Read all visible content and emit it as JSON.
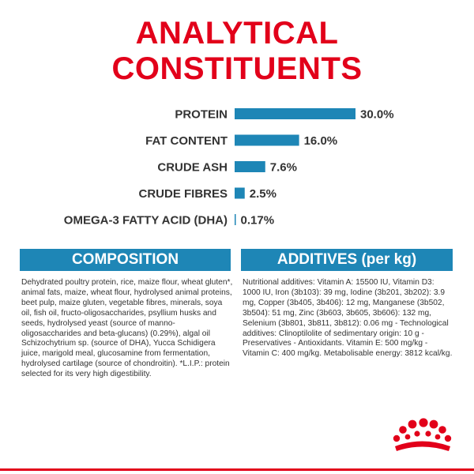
{
  "title": {
    "line1": "ANALYTICAL",
    "line2": "CONSTITUENTS"
  },
  "chart_data": {
    "type": "bar",
    "orientation": "horizontal",
    "categories": [
      "PROTEIN",
      "FAT CONTENT",
      "CRUDE ASH",
      "CRUDE FIBRES",
      "OMEGA-3 FATTY ACID (DHA)"
    ],
    "values": [
      30.0,
      16.0,
      7.6,
      2.5,
      0.17
    ],
    "value_labels": [
      "30.0%",
      "16.0%",
      "7.6%",
      "2.5%",
      "0.17%"
    ],
    "unit": "%",
    "bar_color": "#1e86b6",
    "grid": false,
    "legend": false
  },
  "composition": {
    "heading": "COMPOSITION",
    "text": "Dehydrated poultry protein, rice, maize flour, wheat gluten*, animal fats, maize, wheat flour, hydrolysed animal proteins, beet pulp, maize gluten, vegetable fibres, minerals, soya oil, fish oil, fructo-oligosaccharides, psyllium husks and seeds, hydrolysed yeast (source of manno-oligosaccharides and beta-glucans) (0.29%), algal oil Schizochytrium sp. (source of DHA), Yucca Schidigera juice, marigold meal, glucosamine from fermentation, hydrolysed cartilage (source of chondroitin). *L.I.P.: protein selected for its very high digestibility."
  },
  "additives": {
    "heading": "ADDITIVES (per kg)",
    "text": "Nutritional additives: Vitamin A: 15500 IU, Vitamin D3: 1000 IU, Iron (3b103): 39 mg, Iodine (3b201, 3b202): 3.9 mg, Copper (3b405, 3b406): 12 mg, Manganese (3b502, 3b504): 51 mg, Zinc (3b603, 3b605, 3b606): 132 mg, Selenium (3b801, 3b811, 3b812): 0.06 mg - Technological additives: Clinoptilolite of sedimentary origin: 10 g - Preservatives - Antioxidants. Vitamin E: 500 mg/kg - Vitamin C: 400 mg/kg. Metabolisable energy: 3812 kcal/kg."
  },
  "brand": {
    "logo_icon": "crown-icon",
    "color": "#e2001a"
  }
}
